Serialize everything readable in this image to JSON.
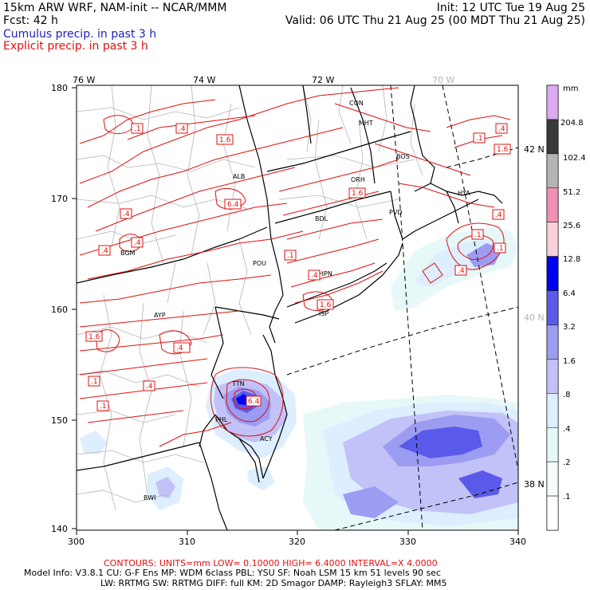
{
  "header": {
    "model_title": "15km ARW WRF, NAM-init -- NCAR/MMM",
    "init_time": "Init: 12 UTC Tue 19 Aug 25",
    "forecast_hour": "Fcst:   42 h",
    "valid_time": "Valid: 06 UTC Thu 21 Aug 25 (00 MDT Thu 21 Aug 25)"
  },
  "legend_lines": {
    "cumulus": {
      "label": "Cumulus precip. in past 3 h",
      "color": "#2020c0"
    },
    "explicit": {
      "label": "Explicit precip. in past 3 h",
      "color": "#e01010"
    }
  },
  "map": {
    "top_lon_labels": [
      "76 W",
      "74 W",
      "72 W",
      "70 W"
    ],
    "right_lat_labels": [
      "42 N",
      "40 N",
      "38 N"
    ],
    "left_y_ticks": [
      "180",
      "170",
      "160",
      "150",
      "140"
    ],
    "bottom_x_ticks": [
      "300",
      "310",
      "320",
      "330",
      "340"
    ],
    "city_labels": [
      "CON",
      "MHT",
      "BOS",
      "ALB",
      "ORH",
      "PVD",
      "BDL",
      "HYA",
      "BGM",
      "POU",
      "HPN",
      "ISP",
      "AYP",
      "TTN",
      "PHL",
      "ACY",
      "BWI"
    ],
    "contour_labels": [
      ".1",
      ".4",
      "1.6",
      ".1",
      ".4",
      "1.6",
      "6.4",
      ".4",
      ".4",
      ".4",
      ".1",
      ".4",
      "1.6",
      ".1",
      "1.6",
      ".1",
      ".4",
      "1.6",
      ".4",
      ".4",
      ".1",
      ".4",
      "6.4",
      ".1"
    ],
    "colors": {
      "contour": "#e01010",
      "state_border": "#000000",
      "county_border": "#b4b4b4",
      "meridian": "#000000"
    }
  },
  "colorbar": {
    "unit": "mm",
    "levels": [
      "204.8",
      "102.4",
      "51.2",
      "25.6",
      "12.8",
      "6.4",
      "3.2",
      "1.6",
      ".8",
      ".4",
      ".2",
      ".1"
    ],
    "colors": [
      "#dcaaf0",
      "#3a3a3a",
      "#b4b4b4",
      "#f090b4",
      "#f8d0d8",
      "#0000f0",
      "#5a5aea",
      "#9c9cf2",
      "#c2c2f8",
      "#dceeff",
      "#e6f8f8",
      "#f4fcfc",
      "#ffffff"
    ]
  },
  "footer": {
    "contours_line": "CONTOURS:  UNITS=mm  LOW= 0.10000      HIGH= 6.4000     INTERVAL=X  4.0000",
    "model_info_1": "Model Info: V3.8.1      CU: G-F Ens MP: WDM 6class  PBL: YSU      SF: Noah LSM     15 km    51 levels    90 sec",
    "model_info_2": "LW: RRTMG    SW: RRTMG   DIFF: full    KM: 2D Smagor DAMP: Rayleigh3   SFLAY: MM5"
  }
}
